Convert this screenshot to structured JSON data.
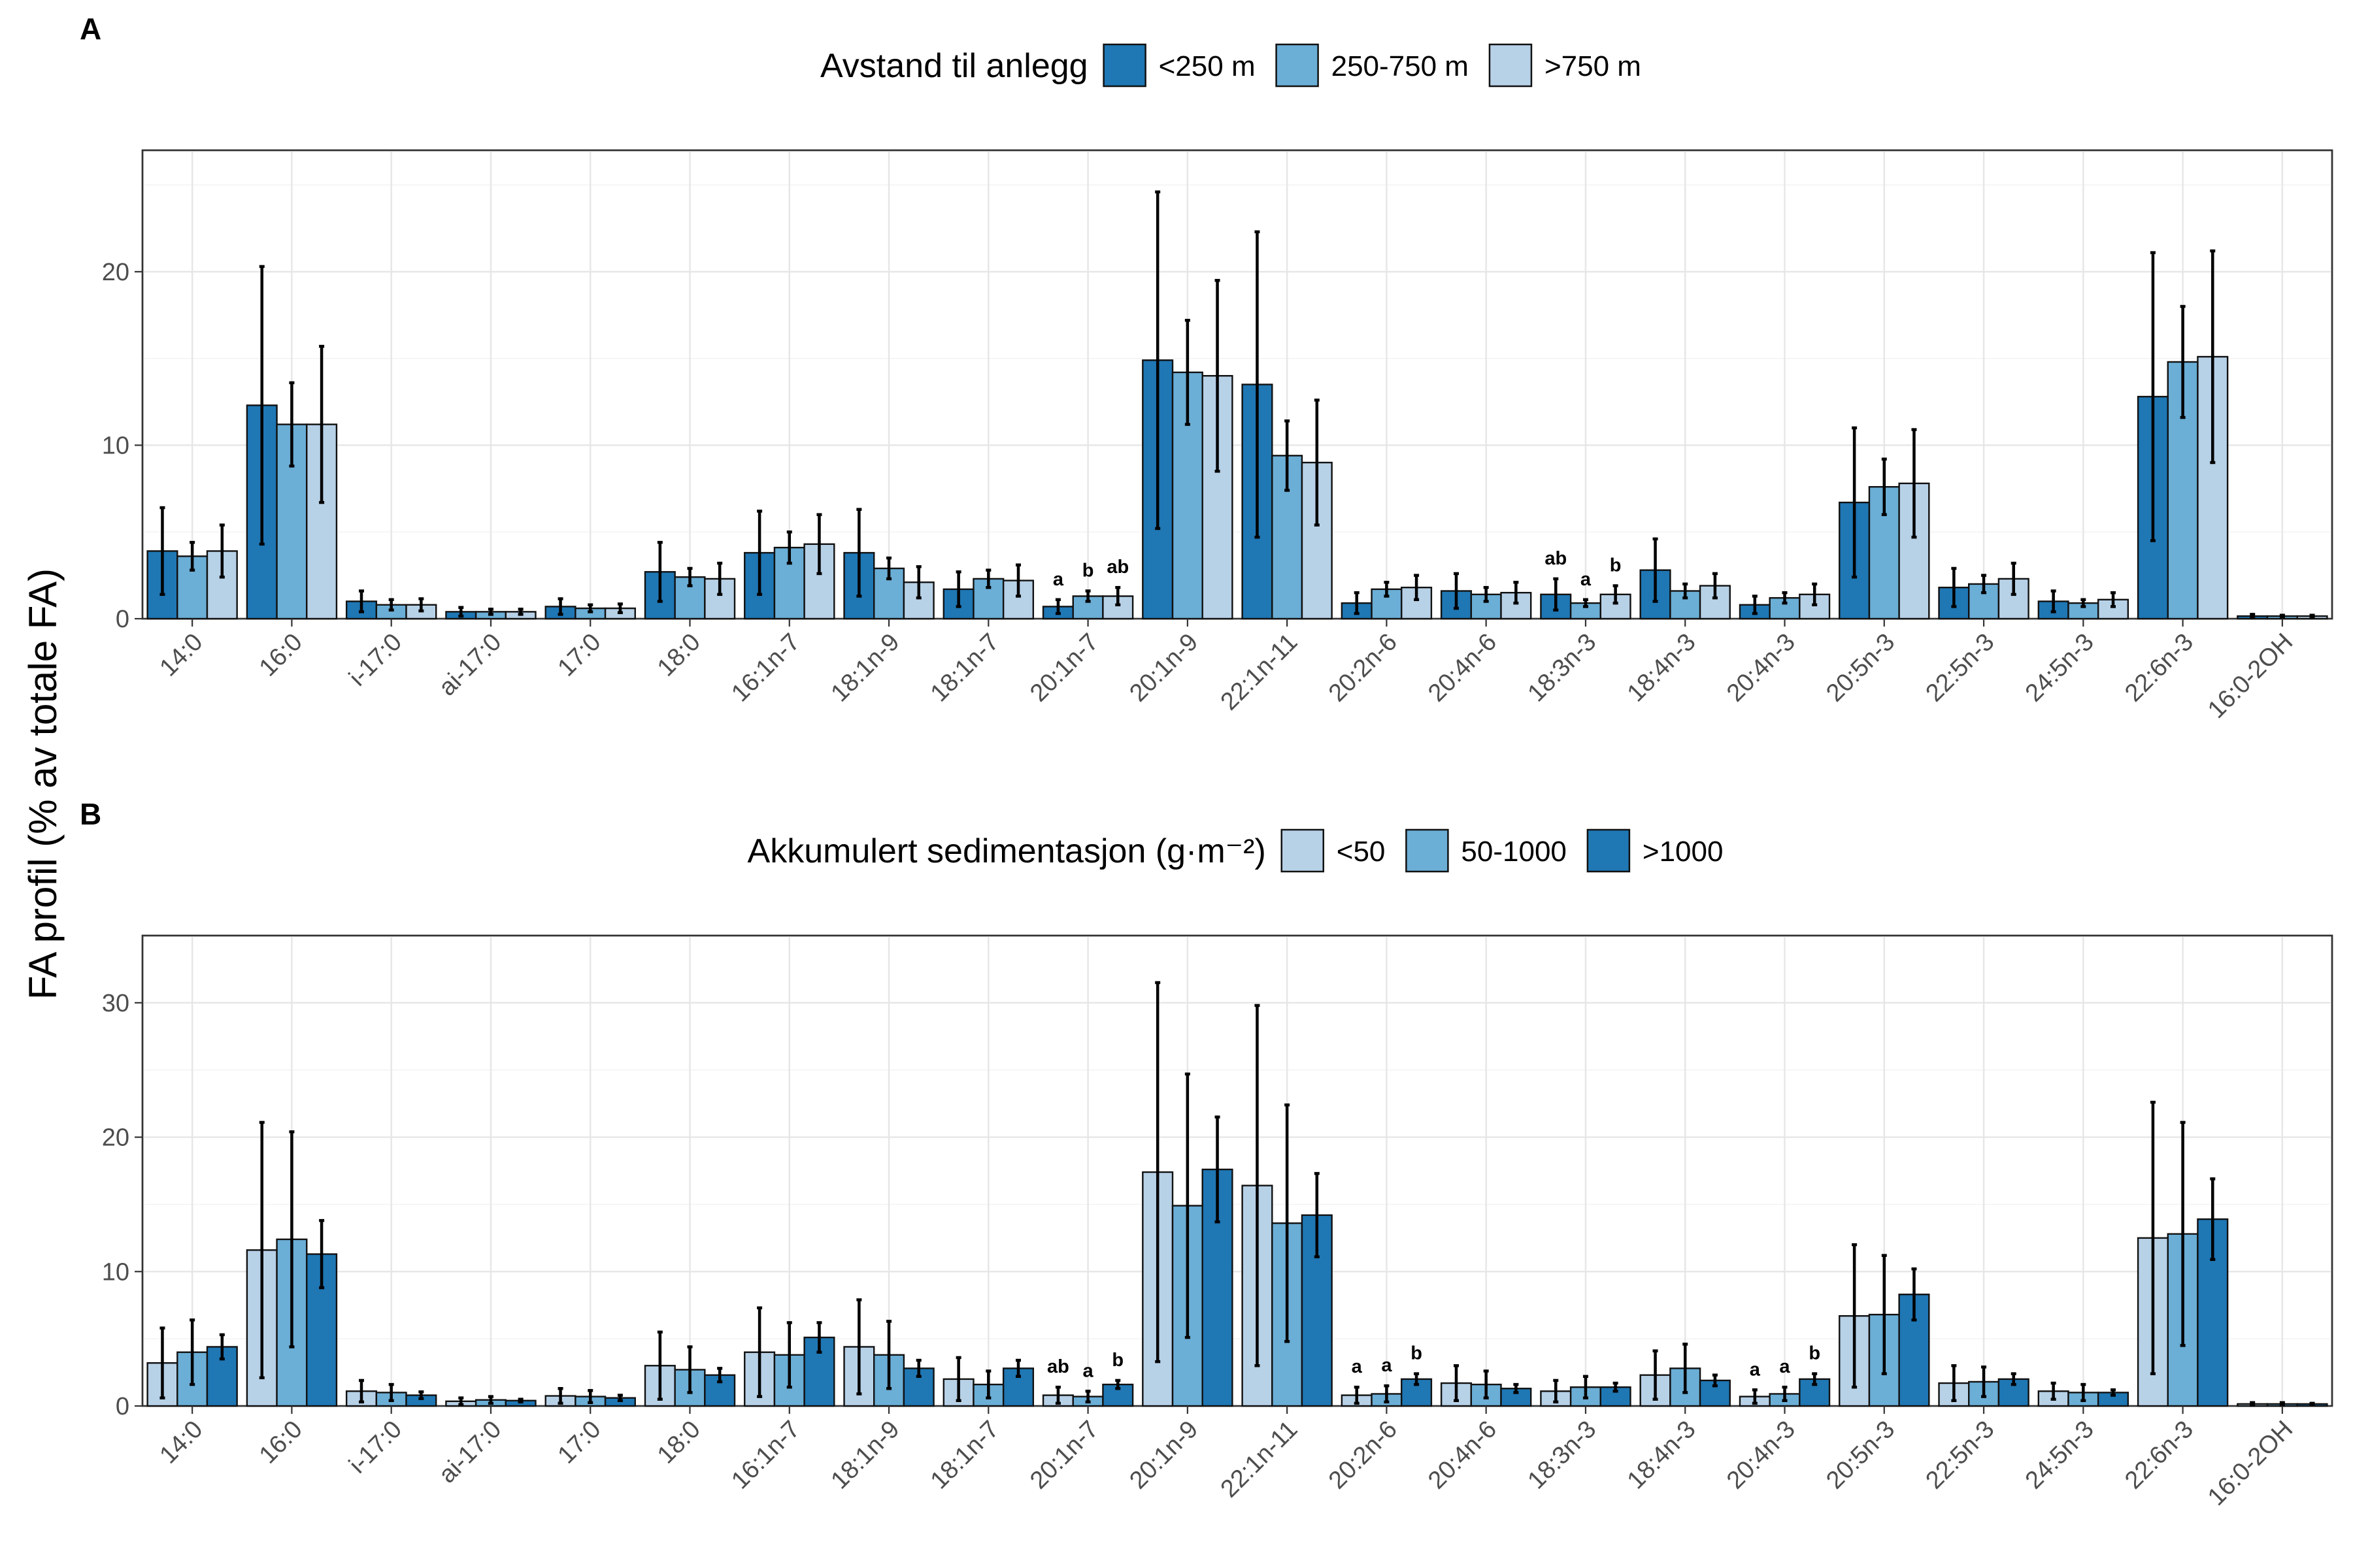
{
  "chart_data": [
    {
      "panel": "A",
      "type": "bar",
      "legend_title": "Avstand til anlegg",
      "legend_position": "top",
      "ylabel": "FA profil (% av totale FA)",
      "ylim": [
        0,
        27
      ],
      "yticks": [
        0,
        10,
        20
      ],
      "categories": [
        "14:0",
        "16:0",
        "i-17:0",
        "ai-17:0",
        "17:0",
        "18:0",
        "16:1n-7",
        "18:1n-9",
        "18:1n-7",
        "20:1n-7",
        "20:1n-9",
        "22:1n-11",
        "20:2n-6",
        "20:4n-6",
        "18:3n-3",
        "18:4n-3",
        "20:4n-3",
        "20:5n-3",
        "22:5n-3",
        "24:5n-3",
        "22:6n-3",
        "16:0-2OH"
      ],
      "series": [
        {
          "name": "<250 m",
          "color": "#1f77b4",
          "values": [
            3.9,
            12.3,
            1.0,
            0.4,
            0.7,
            2.7,
            3.8,
            3.8,
            1.7,
            0.7,
            14.9,
            13.5,
            0.9,
            1.6,
            1.4,
            2.8,
            0.8,
            6.7,
            1.8,
            1.0,
            12.8,
            0.15
          ],
          "errors": [
            2.5,
            8.0,
            0.6,
            0.25,
            0.45,
            1.7,
            2.4,
            2.5,
            1.0,
            0.4,
            9.7,
            8.8,
            0.6,
            1.0,
            0.9,
            1.8,
            0.5,
            4.3,
            1.1,
            0.6,
            8.3,
            0.1
          ]
        },
        {
          "name": "250-750 m",
          "color": "#6baed6",
          "values": [
            3.6,
            11.2,
            0.8,
            0.4,
            0.6,
            2.4,
            4.1,
            2.9,
            2.3,
            1.3,
            14.2,
            9.4,
            1.7,
            1.4,
            0.9,
            1.6,
            1.2,
            7.6,
            2.0,
            0.9,
            14.8,
            0.15
          ],
          "errors": [
            0.8,
            2.4,
            0.3,
            0.15,
            0.2,
            0.5,
            0.9,
            0.6,
            0.5,
            0.3,
            3.0,
            2.0,
            0.4,
            0.4,
            0.2,
            0.4,
            0.3,
            1.6,
            0.5,
            0.2,
            3.2,
            0.05
          ]
        },
        {
          "name": ">750 m",
          "color": "#b7d1e7",
          "values": [
            3.9,
            11.2,
            0.8,
            0.4,
            0.6,
            2.3,
            4.3,
            2.1,
            2.2,
            1.3,
            14.0,
            9.0,
            1.8,
            1.5,
            1.4,
            1.9,
            1.4,
            7.8,
            2.3,
            1.1,
            15.1,
            0.15
          ],
          "errors": [
            1.5,
            4.5,
            0.35,
            0.15,
            0.25,
            0.9,
            1.7,
            0.9,
            0.9,
            0.5,
            5.5,
            3.6,
            0.7,
            0.6,
            0.5,
            0.7,
            0.6,
            3.1,
            0.9,
            0.4,
            6.1,
            0.05
          ]
        }
      ],
      "annotations": [
        {
          "category": "20:1n-7",
          "series": 0,
          "text": "a"
        },
        {
          "category": "20:1n-7",
          "series": 1,
          "text": "b"
        },
        {
          "category": "20:1n-7",
          "series": 2,
          "text": "ab"
        },
        {
          "category": "18:3n-3",
          "series": 0,
          "text": "ab"
        },
        {
          "category": "18:3n-3",
          "series": 1,
          "text": "a"
        },
        {
          "category": "18:3n-3",
          "series": 2,
          "text": "b"
        }
      ]
    },
    {
      "panel": "B",
      "type": "bar",
      "legend_title": "Akkumulert sedimentasjon (g·m⁻²)",
      "legend_position": "top",
      "ylabel": "FA profil (% av totale FA)",
      "ylim": [
        0,
        35
      ],
      "yticks": [
        0,
        10,
        20,
        30
      ],
      "categories": [
        "14:0",
        "16:0",
        "i-17:0",
        "ai-17:0",
        "17:0",
        "18:0",
        "16:1n-7",
        "18:1n-9",
        "18:1n-7",
        "20:1n-7",
        "20:1n-9",
        "22:1n-11",
        "20:2n-6",
        "20:4n-6",
        "18:3n-3",
        "18:4n-3",
        "20:4n-3",
        "20:5n-3",
        "22:5n-3",
        "24:5n-3",
        "22:6n-3",
        "16:0-2OH"
      ],
      "series": [
        {
          "name": "<50",
          "color": "#b7d1e7",
          "values": [
            3.2,
            11.6,
            1.1,
            0.35,
            0.75,
            3.0,
            4.0,
            4.4,
            2.0,
            0.8,
            17.4,
            16.4,
            0.8,
            1.7,
            1.1,
            2.3,
            0.7,
            6.7,
            1.7,
            1.1,
            12.5,
            0.15
          ],
          "errors": [
            2.6,
            9.5,
            0.8,
            0.25,
            0.55,
            2.5,
            3.3,
            3.5,
            1.6,
            0.6,
            14.1,
            13.4,
            0.6,
            1.3,
            0.8,
            1.8,
            0.5,
            5.3,
            1.3,
            0.6,
            10.1,
            0.1
          ]
        },
        {
          "name": "50-1000",
          "color": "#6baed6",
          "values": [
            4.0,
            12.4,
            1.0,
            0.45,
            0.7,
            2.7,
            3.8,
            3.8,
            1.6,
            0.7,
            14.9,
            13.6,
            0.9,
            1.6,
            1.4,
            2.8,
            0.9,
            6.8,
            1.8,
            1.0,
            12.8,
            0.15
          ],
          "errors": [
            2.4,
            8.0,
            0.6,
            0.25,
            0.45,
            1.7,
            2.4,
            2.5,
            1.0,
            0.4,
            9.8,
            8.8,
            0.6,
            1.0,
            0.8,
            1.8,
            0.5,
            4.4,
            1.1,
            0.6,
            8.3,
            0.1
          ]
        },
        {
          "name": ">1000",
          "color": "#1f77b4",
          "values": [
            4.4,
            11.3,
            0.8,
            0.4,
            0.6,
            2.3,
            5.1,
            2.8,
            2.8,
            1.6,
            17.6,
            14.2,
            2.0,
            1.3,
            1.4,
            1.9,
            2.0,
            8.3,
            2.0,
            1.0,
            13.9,
            0.15
          ],
          "errors": [
            0.9,
            2.5,
            0.25,
            0.1,
            0.2,
            0.5,
            1.1,
            0.6,
            0.6,
            0.3,
            3.9,
            3.1,
            0.4,
            0.3,
            0.3,
            0.4,
            0.4,
            1.9,
            0.4,
            0.2,
            3.0,
            0.05
          ]
        }
      ],
      "annotations": [
        {
          "category": "20:1n-7",
          "series": 0,
          "text": "ab"
        },
        {
          "category": "20:1n-7",
          "series": 1,
          "text": "a"
        },
        {
          "category": "20:1n-7",
          "series": 2,
          "text": "b"
        },
        {
          "category": "20:2n-6",
          "series": 0,
          "text": "a"
        },
        {
          "category": "20:2n-6",
          "series": 1,
          "text": "a"
        },
        {
          "category": "20:2n-6",
          "series": 2,
          "text": "b"
        },
        {
          "category": "20:4n-3",
          "series": 0,
          "text": "a"
        },
        {
          "category": "20:4n-3",
          "series": 1,
          "text": "a"
        },
        {
          "category": "20:4n-3",
          "series": 2,
          "text": "b"
        }
      ]
    }
  ]
}
